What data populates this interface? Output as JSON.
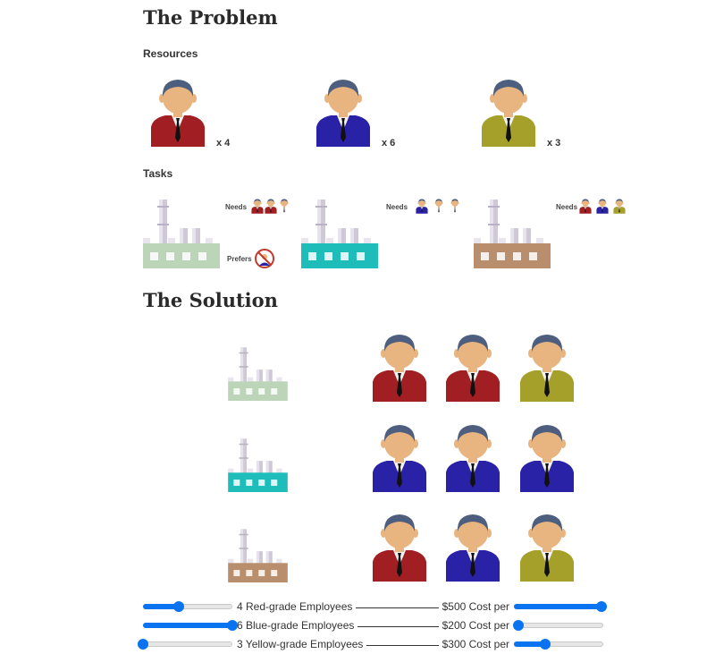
{
  "problem": {
    "title": "The Problem",
    "resources_heading": "Resources",
    "tasks_heading": "Tasks",
    "resources": [
      {
        "name": "red-employee",
        "color": "#a11f23",
        "count_label": "x 4"
      },
      {
        "name": "blue-employee",
        "color": "#2a22a6",
        "count_label": "x 6"
      },
      {
        "name": "yellow-employee",
        "color": "#a4a02a",
        "count_label": "x 3"
      }
    ],
    "tasks": [
      {
        "name": "light-green-factory",
        "color": "#bcd4b8",
        "needs_label": "Needs",
        "prefers_label": "Prefers",
        "needs": [
          "red-employee",
          "red-employee",
          "neutral-employee"
        ]
      },
      {
        "name": "teal-factory",
        "color": "#1fbdba",
        "needs_label": "Needs",
        "needs": [
          "blue-employee",
          "neutral-employee",
          "neutral-employee"
        ]
      },
      {
        "name": "brown-factory",
        "color": "#b98e6d",
        "needs_label": "Needs",
        "needs": [
          "red-employee",
          "blue-employee",
          "yellow-employee"
        ]
      }
    ]
  },
  "solution": {
    "title": "The Solution",
    "rows": [
      {
        "factory": "light-green-factory",
        "employees": [
          "red-employee",
          "red-employee",
          "yellow-employee"
        ]
      },
      {
        "factory": "teal-factory",
        "employees": [
          "blue-employee",
          "blue-employee",
          "blue-employee"
        ]
      },
      {
        "factory": "brown-factory",
        "employees": [
          "red-employee",
          "blue-employee",
          "yellow-employee"
        ]
      }
    ]
  },
  "controls": [
    {
      "employees_label": "4 Red-grade Employees",
      "cost_label": "$500 Cost per",
      "count_fraction": 0.4,
      "cost_fraction": 0.98
    },
    {
      "employees_label": "6 Blue-grade Employees",
      "cost_label": "$200 Cost per",
      "count_fraction": 1.0,
      "cost_fraction": 0.05
    },
    {
      "employees_label": "3 Yellow-grade Employees",
      "cost_label": "$300 Cost per",
      "count_fraction": 0.0,
      "cost_fraction": 0.35
    }
  ],
  "colors": {
    "red": "#a11f23",
    "blue": "#2a22a6",
    "yellow": "#a4a02a",
    "skin": "#e8b47f",
    "hair": "#4e5e7e",
    "accent": "#0a74f0",
    "factory_light_green": "#bcd4b8",
    "factory_teal": "#1fbdba",
    "factory_brown": "#b98e6d"
  },
  "icons": {
    "no-entry": "no-blue-employee-icon"
  }
}
